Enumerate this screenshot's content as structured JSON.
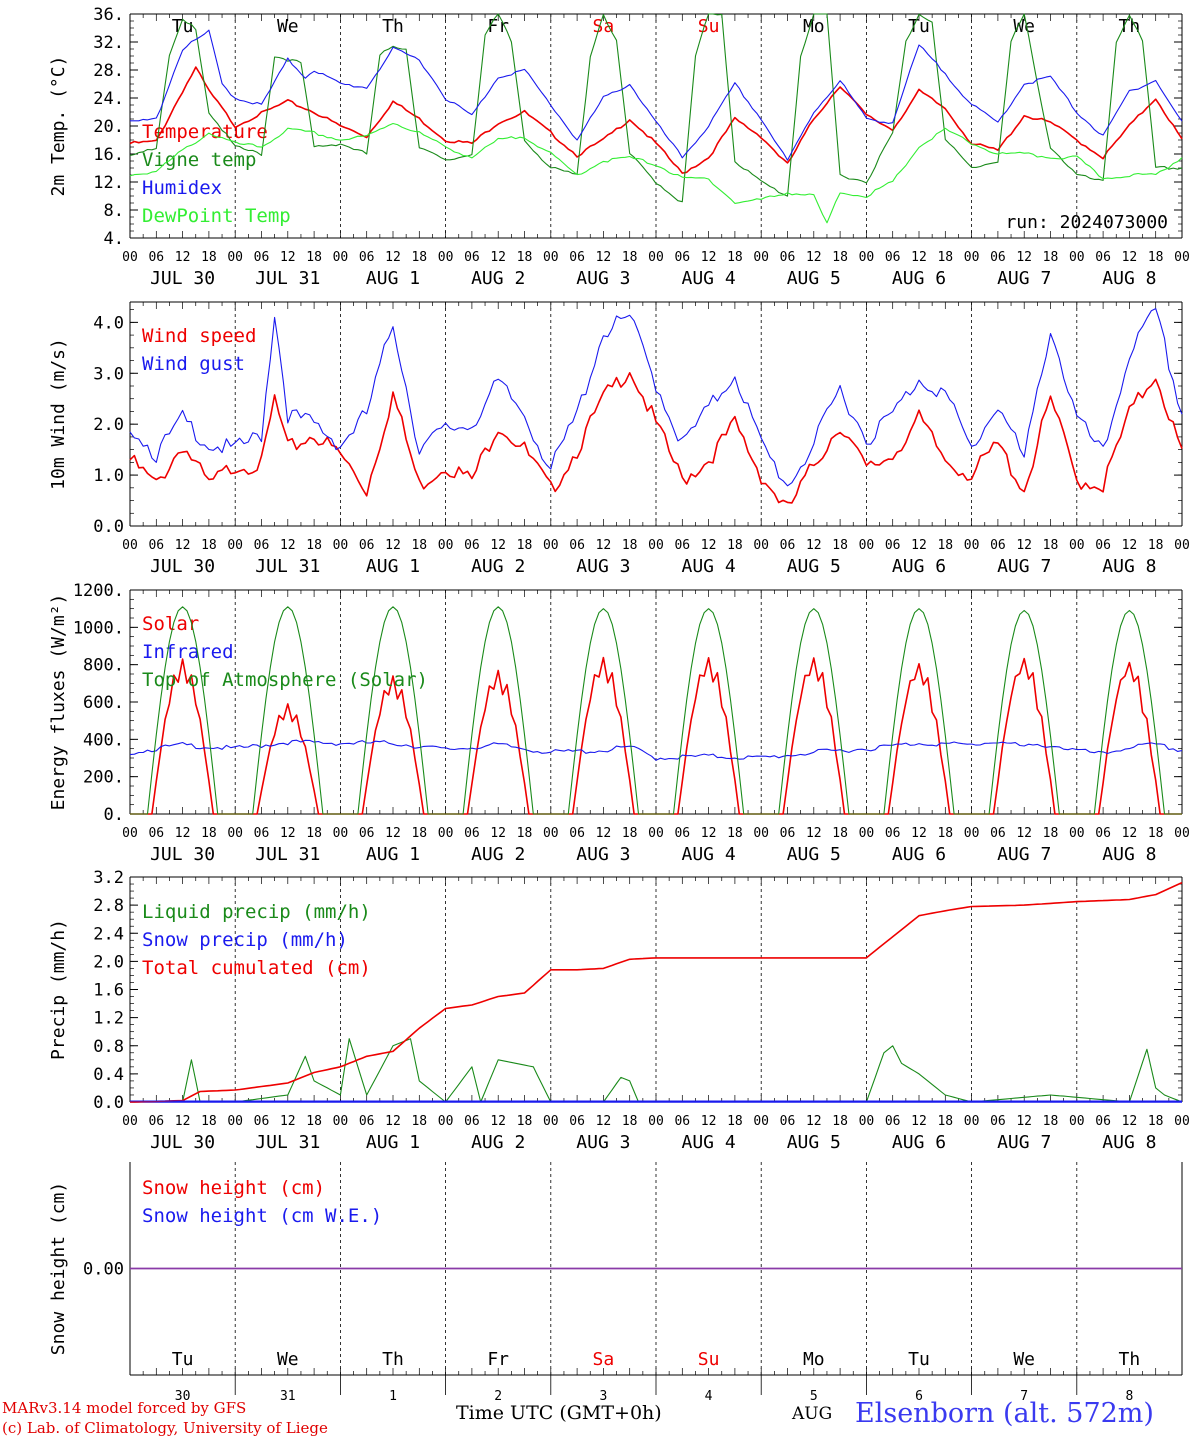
{
  "meta": {
    "run_label": "run: 2024073000",
    "model_line": "MARv3.14 model forced by GFS",
    "lab_line": "(c) Lab. of Climatology, University of Liege",
    "time_axis": "Time UTC (GMT+0h)",
    "month_label": "AUG",
    "station": "Elsenborn (alt. 572m)"
  },
  "days": {
    "weekdays": [
      "Tu",
      "We",
      "Th",
      "Fr",
      "Sa",
      "Su",
      "Mo",
      "Tu",
      "We",
      "Th"
    ],
    "weekend_flags": [
      false,
      false,
      false,
      false,
      true,
      true,
      false,
      false,
      false,
      false
    ],
    "dates": [
      "JUL 30",
      "JUL 31",
      "AUG  1",
      "AUG  2",
      "AUG  3",
      "AUG  4",
      "AUG  5",
      "AUG  6",
      "AUG  7",
      "AUG  8"
    ],
    "day_numbers": [
      "30",
      "31",
      "1",
      "2",
      "3",
      "4",
      "5",
      "6",
      "7",
      "8"
    ],
    "hour_ticks": [
      "00",
      "06",
      "12",
      "18"
    ],
    "end_tick": "00"
  },
  "colors": {
    "temperature": "#ee0000",
    "vigne": "#1a8a1a",
    "humidex": "#1a1aee",
    "dewpoint": "#33ee33",
    "wind": "#ee0000",
    "gust": "#1a1aee",
    "solar": "#ee0000",
    "infrared": "#1a1aee",
    "toa": "#1a8a1a",
    "liquid": "#1a8a1a",
    "snow_precip": "#1a1aee",
    "cumul": "#ee0000",
    "snow_h": "#ee0000",
    "snow_we": "#1a1aee",
    "weekend": "#ee0000"
  },
  "chart_data": [
    {
      "id": "temp",
      "type": "line",
      "ylabel": "2m Temp. (°C)",
      "yticks": [
        "36.",
        "32.",
        "28.",
        "24.",
        "20.",
        "16.",
        "12.",
        "8.",
        "4."
      ],
      "ylim": [
        4,
        36
      ],
      "x_unit": "hours since JUL 30 00 UTC",
      "series": [
        {
          "name": "Temperature",
          "color": "temperature",
          "x": [
            0,
            6,
            12,
            15,
            18,
            24,
            30,
            36,
            42,
            48,
            54,
            60,
            66,
            72,
            78,
            84,
            90,
            96,
            102,
            108,
            114,
            120,
            126,
            132,
            138,
            144,
            150,
            156,
            162,
            168,
            174,
            180,
            186,
            192,
            198,
            204,
            210,
            216,
            222,
            228,
            234,
            240
          ],
          "y": [
            17.5,
            17.8,
            25,
            28.3,
            25,
            20,
            21.8,
            23.5,
            22,
            20,
            18.5,
            23.5,
            21,
            18,
            17.5,
            20.5,
            22,
            19,
            15.8,
            18,
            21,
            17.5,
            13.2,
            15.5,
            21,
            18.5,
            14.5,
            21,
            25.8,
            21.5,
            19.5,
            25,
            22.5,
            17.5,
            16.5,
            21.5,
            20.5,
            18,
            15.5,
            20,
            24,
            18
          ]
        },
        {
          "name": "Vigne temp",
          "color": "vigne",
          "x": [
            0,
            6,
            9,
            12,
            15,
            18,
            24,
            30,
            33,
            36,
            39,
            42,
            48,
            54,
            57,
            60,
            63,
            66,
            72,
            78,
            81,
            84,
            87,
            90,
            96,
            102,
            105,
            108,
            111,
            114,
            120,
            126,
            129,
            132,
            135,
            138,
            144,
            150,
            153,
            156,
            159,
            162,
            168,
            174,
            177,
            180,
            183,
            186,
            192,
            198,
            201,
            204,
            207,
            210,
            216,
            222,
            225,
            228,
            231,
            234,
            240
          ],
          "y": [
            16,
            17,
            30,
            35,
            34,
            22,
            17,
            16,
            30,
            29.5,
            29,
            17,
            17.5,
            16,
            30,
            31.5,
            31,
            17,
            15,
            16,
            33,
            36,
            32,
            18,
            14,
            13,
            30,
            36,
            32,
            16,
            12,
            9,
            30,
            36,
            36,
            15,
            12,
            10,
            30,
            36,
            36,
            13,
            12,
            19,
            32,
            36,
            35,
            18,
            14,
            15,
            32,
            36,
            26,
            17,
            13,
            12,
            32,
            36,
            32,
            14,
            14
          ]
        },
        {
          "name": "Humidex",
          "color": "humidex",
          "x": [
            0,
            6,
            12,
            18,
            21,
            24,
            30,
            36,
            40,
            42,
            48,
            54,
            60,
            66,
            72,
            78,
            84,
            90,
            96,
            102,
            108,
            114,
            120,
            126,
            132,
            138,
            144,
            150,
            156,
            162,
            168,
            174,
            180,
            186,
            192,
            198,
            204,
            210,
            216,
            222,
            228,
            234,
            240
          ],
          "y": [
            20.5,
            21,
            31,
            33.5,
            26,
            24,
            23,
            29.5,
            27,
            28,
            26,
            25.5,
            31,
            29.5,
            24,
            21.5,
            27,
            28,
            23,
            18,
            24,
            26,
            20.5,
            15.5,
            20,
            26,
            21,
            15,
            22,
            26.5,
            21,
            20.5,
            31.5,
            27.5,
            23,
            20.5,
            26,
            27,
            22,
            18.5,
            25,
            26.5,
            20.5
          ]
        },
        {
          "name": "DewPoint Temp",
          "color": "dewpoint",
          "x": [
            0,
            6,
            12,
            18,
            24,
            30,
            36,
            42,
            48,
            54,
            60,
            66,
            72,
            78,
            84,
            90,
            96,
            102,
            108,
            114,
            120,
            126,
            132,
            138,
            144,
            150,
            156,
            159,
            162,
            168,
            174,
            180,
            186,
            192,
            198,
            204,
            210,
            216,
            222,
            228,
            234,
            240
          ],
          "y": [
            13,
            13.5,
            16.5,
            19,
            17.5,
            17,
            19.5,
            19,
            18,
            18.5,
            20.5,
            19,
            17,
            15.5,
            18,
            18.5,
            16,
            13,
            15,
            15.5,
            14.5,
            12.5,
            12.5,
            9,
            9.5,
            10.5,
            10,
            6,
            10.5,
            10,
            12,
            17,
            19.5,
            17.5,
            16,
            16,
            15.5,
            15.5,
            12.5,
            13,
            13,
            15.5
          ]
        }
      ]
    },
    {
      "id": "wind",
      "type": "line",
      "ylabel": "10m Wind (m/s)",
      "yticks": [
        "4.0",
        "3.0",
        "2.0",
        "1.0",
        "0.0"
      ],
      "ylim": [
        0,
        4.4
      ],
      "x_unit": "hours since JUL 30 00 UTC",
      "series": [
        {
          "name": "Wind speed",
          "color": "wind",
          "x": [
            0,
            6,
            12,
            18,
            24,
            30,
            33,
            36,
            42,
            48,
            54,
            60,
            66,
            72,
            78,
            84,
            90,
            96,
            102,
            108,
            114,
            120,
            126,
            132,
            138,
            144,
            150,
            156,
            162,
            168,
            174,
            180,
            186,
            192,
            198,
            204,
            210,
            216,
            222,
            228,
            234,
            240
          ],
          "y": [
            1.3,
            0.8,
            1.6,
            0.8,
            1.2,
            1.2,
            2.5,
            1.5,
            1.8,
            1.4,
            0.7,
            2.6,
            0.8,
            1.2,
            0.9,
            2.0,
            1.5,
            0.7,
            1.5,
            2.5,
            3.1,
            2.0,
            0.9,
            1.3,
            2.0,
            1.0,
            0.3,
            1.2,
            2.0,
            1.1,
            1.4,
            2.1,
            1.3,
            1.0,
            1.6,
            0.7,
            2.5,
            0.9,
            0.8,
            2.2,
            3.0,
            1.4
          ]
        },
        {
          "name": "Wind gust",
          "color": "gust",
          "x": [
            0,
            6,
            12,
            18,
            24,
            30,
            33,
            36,
            42,
            48,
            54,
            60,
            66,
            72,
            78,
            84,
            90,
            96,
            102,
            108,
            114,
            120,
            126,
            132,
            138,
            144,
            150,
            156,
            162,
            168,
            174,
            180,
            186,
            192,
            198,
            204,
            210,
            216,
            222,
            228,
            234,
            240
          ],
          "y": [
            2.0,
            1.4,
            2.1,
            1.6,
            1.5,
            1.8,
            4.2,
            2.2,
            2.0,
            1.6,
            2.2,
            4.0,
            1.5,
            1.9,
            2.0,
            2.8,
            2.2,
            1.1,
            2.2,
            3.8,
            4.1,
            2.8,
            1.6,
            2.3,
            3.0,
            1.6,
            0.8,
            1.6,
            2.7,
            1.7,
            2.2,
            2.9,
            2.6,
            1.5,
            2.4,
            1.3,
            3.9,
            2.1,
            1.4,
            3.4,
            4.2,
            2.2
          ]
        }
      ]
    },
    {
      "id": "energy",
      "type": "line",
      "ylabel": "Energy fluxes (W/m²)",
      "yticks": [
        "1200.",
        "1000.",
        "800.",
        "600.",
        "400.",
        "200.",
        "0."
      ],
      "ylim": [
        0,
        1200
      ],
      "x_unit": "hours since JUL 30 00 UTC",
      "series": [
        {
          "name": "Solar",
          "color": "solar",
          "daily_peak": [
            830,
            590,
            740,
            770,
            840,
            840,
            840,
            810,
            840,
            820
          ]
        },
        {
          "name": "Infrared",
          "color": "infrared",
          "x": [
            0,
            12,
            24,
            36,
            48,
            60,
            72,
            84,
            96,
            108,
            114,
            120,
            132,
            144,
            156,
            168,
            180,
            192,
            198,
            204,
            210,
            216,
            222,
            228,
            234,
            240
          ],
          "y": [
            330,
            370,
            350,
            385,
            380,
            380,
            345,
            370,
            330,
            340,
            360,
            300,
            310,
            300,
            330,
            350,
            380,
            370,
            390,
            360,
            370,
            340,
            320,
            360,
            370,
            340
          ]
        },
        {
          "name": "Top of Atmosphere (Solar)",
          "color": "toa",
          "daily_peak": [
            1110,
            1110,
            1110,
            1110,
            1100,
            1100,
            1100,
            1100,
            1090,
            1090
          ]
        }
      ]
    },
    {
      "id": "precip",
      "type": "line",
      "ylabel": "Precip (mm/h)",
      "yticks": [
        "3.2",
        "2.8",
        "2.4",
        "2.0",
        "1.6",
        "1.2",
        "0.8",
        "0.4",
        "0.0"
      ],
      "ylim": [
        0,
        3.2
      ],
      "x_unit": "hours since JUL 30 00 UTC",
      "series": [
        {
          "name": "Liquid precip (mm/h)",
          "color": "liquid",
          "x": [
            0,
            12,
            14,
            16,
            18,
            24,
            36,
            40,
            42,
            48,
            50,
            54,
            60,
            64,
            66,
            70,
            72,
            78,
            80,
            84,
            88,
            92,
            96,
            108,
            112,
            114,
            116,
            120,
            144,
            168,
            172,
            174,
            176,
            180,
            184,
            186,
            192,
            210,
            228,
            232,
            234,
            236,
            240
          ],
          "y": [
            0,
            0,
            0.6,
            0,
            0,
            0,
            0.1,
            0.65,
            0.3,
            0.1,
            0.9,
            0.1,
            0.8,
            0.9,
            0.3,
            0.1,
            0,
            0.5,
            0,
            0.6,
            0.55,
            0.5,
            0,
            0,
            0.35,
            0.3,
            0,
            0,
            0,
            0,
            0.7,
            0.8,
            0.55,
            0.4,
            0.2,
            0.1,
            0,
            0.1,
            0,
            0.75,
            0.2,
            0.1,
            0
          ]
        },
        {
          "name": "Snow precip (mm/h)",
          "color": "snow_precip",
          "x": [
            0,
            240
          ],
          "y": [
            0,
            0
          ]
        },
        {
          "name": "Total cumulated (cm)",
          "color": "cumul",
          "x": [
            0,
            12,
            16,
            24,
            36,
            42,
            48,
            54,
            60,
            66,
            72,
            78,
            84,
            90,
            96,
            102,
            108,
            114,
            120,
            144,
            168,
            174,
            180,
            186,
            192,
            204,
            216,
            228,
            234,
            240
          ],
          "y": [
            0,
            0.02,
            0.15,
            0.17,
            0.27,
            0.42,
            0.5,
            0.65,
            0.72,
            1.05,
            1.33,
            1.38,
            1.5,
            1.55,
            1.88,
            1.88,
            1.9,
            2.03,
            2.05,
            2.05,
            2.05,
            2.35,
            2.65,
            2.72,
            2.78,
            2.8,
            2.85,
            2.88,
            2.95,
            3.12
          ]
        }
      ]
    },
    {
      "id": "snow",
      "type": "line",
      "ylabel": "Snow height (cm)",
      "yticks": [
        "0.00"
      ],
      "ylim": [
        -1,
        1
      ],
      "x_unit": "hours since JUL 30 00 UTC",
      "series": [
        {
          "name": "Snow height (cm)",
          "color": "snow_h",
          "x": [
            0,
            240
          ],
          "y": [
            0,
            0
          ]
        },
        {
          "name": "Snow height (cm W.E.)",
          "color": "snow_we",
          "x": [
            0,
            240
          ],
          "y": [
            0,
            0
          ]
        }
      ]
    }
  ]
}
